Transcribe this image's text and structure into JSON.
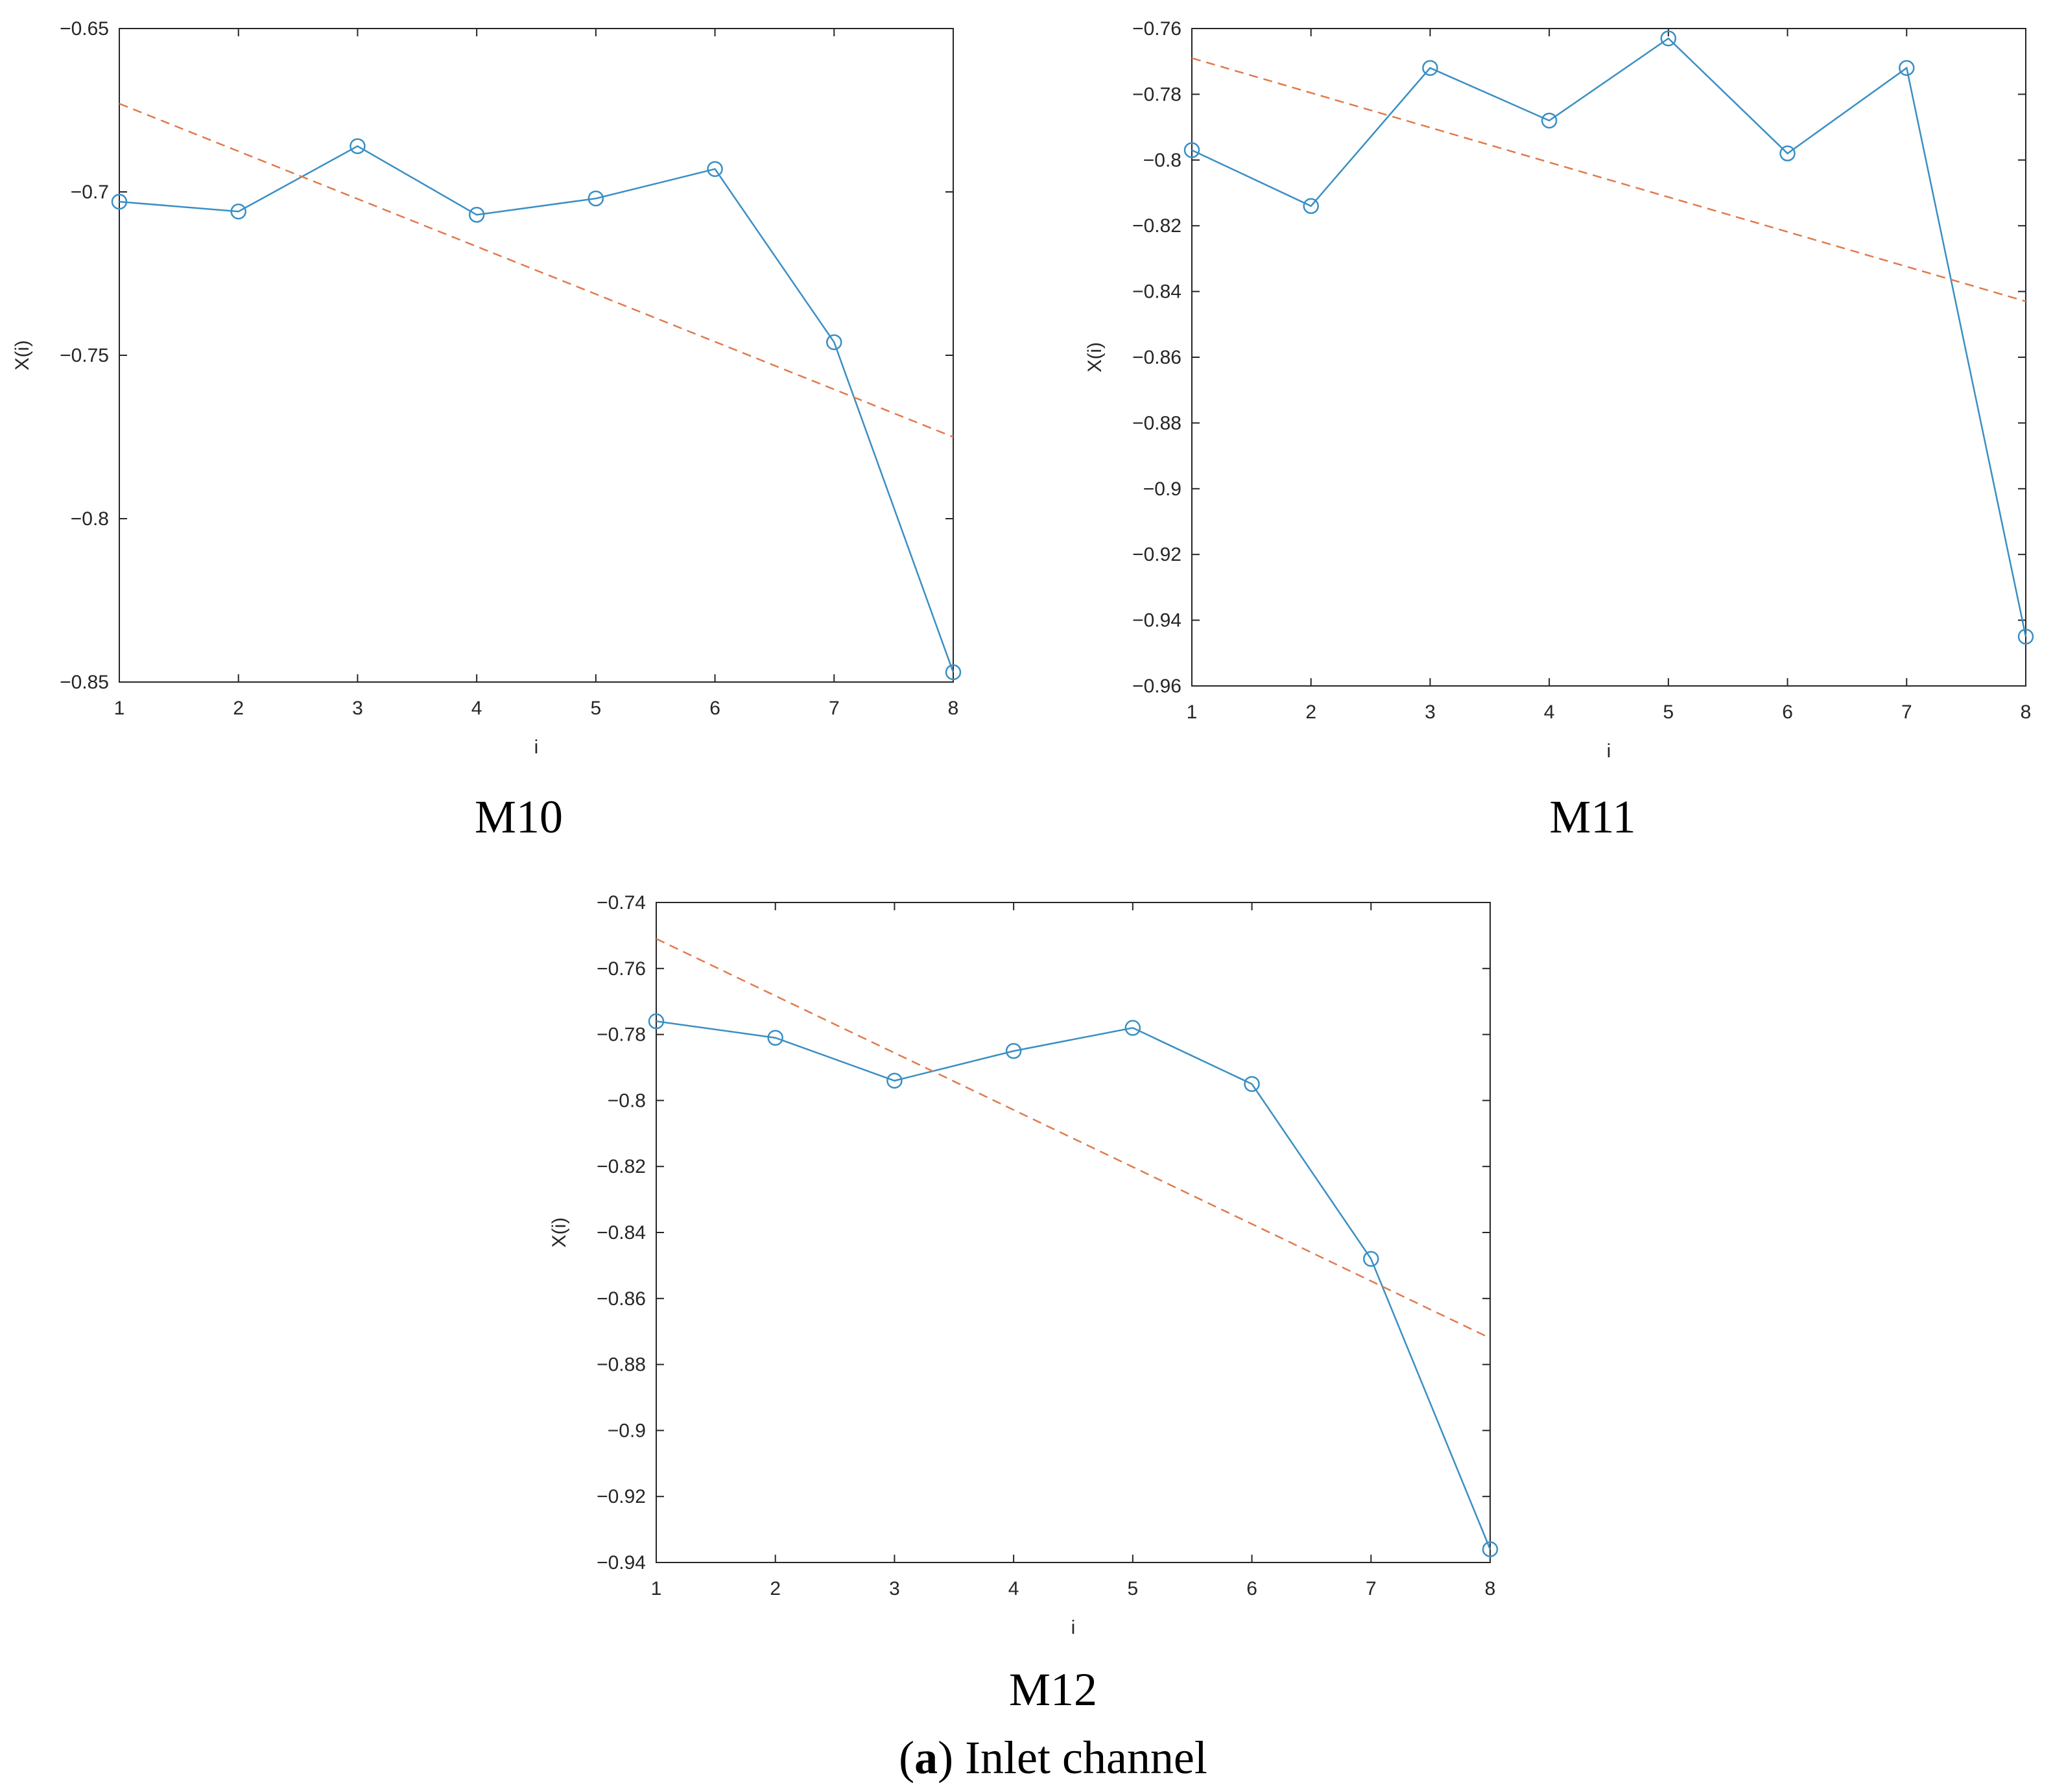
{
  "colors": {
    "series": "#3a8fc4",
    "trend": "#e07a4c",
    "axis": "#262626"
  },
  "caption": {
    "letter": "a",
    "text": "Inlet channel"
  },
  "chart_data": [
    {
      "type": "line",
      "label": "M10",
      "xlabel": "i",
      "ylabel": "X(i)",
      "xlim": [
        1,
        8
      ],
      "ylim": [
        -0.85,
        -0.65
      ],
      "xticks": [
        1,
        2,
        3,
        4,
        5,
        6,
        7,
        8
      ],
      "yticks": [
        -0.85,
        -0.8,
        -0.75,
        -0.7,
        -0.65
      ],
      "ytick_labels": [
        "−0.85",
        "−0.8",
        "−0.75",
        "−0.7",
        "−0.65"
      ],
      "series": [
        {
          "name": "X(i)",
          "style": "solid-circle",
          "x": [
            1,
            2,
            3,
            4,
            5,
            6,
            7,
            8
          ],
          "y": [
            -0.703,
            -0.706,
            -0.686,
            -0.707,
            -0.702,
            -0.693,
            -0.746,
            -0.847
          ]
        },
        {
          "name": "trend",
          "style": "dashed",
          "x": [
            1,
            8
          ],
          "y": [
            -0.673,
            -0.775
          ]
        }
      ]
    },
    {
      "type": "line",
      "label": "M11",
      "xlabel": "i",
      "ylabel": "X(i)",
      "xlim": [
        1,
        8
      ],
      "ylim": [
        -0.96,
        -0.76
      ],
      "xticks": [
        1,
        2,
        3,
        4,
        5,
        6,
        7,
        8
      ],
      "yticks": [
        -0.96,
        -0.94,
        -0.92,
        -0.9,
        -0.88,
        -0.86,
        -0.84,
        -0.82,
        -0.8,
        -0.78,
        -0.76
      ],
      "ytick_labels": [
        "−0.96",
        "−0.94",
        "−0.92",
        "−0.9",
        "−0.88",
        "−0.86",
        "−0.84",
        "−0.82",
        "−0.8",
        "−0.78",
        "−0.76"
      ],
      "series": [
        {
          "name": "X(i)",
          "style": "solid-circle",
          "x": [
            1,
            2,
            3,
            4,
            5,
            6,
            7,
            8
          ],
          "y": [
            -0.797,
            -0.814,
            -0.772,
            -0.788,
            -0.763,
            -0.798,
            -0.772,
            -0.945
          ]
        },
        {
          "name": "trend",
          "style": "dashed",
          "x": [
            1,
            8
          ],
          "y": [
            -0.769,
            -0.843
          ]
        }
      ]
    },
    {
      "type": "line",
      "label": "M12",
      "xlabel": "i",
      "ylabel": "X(i)",
      "xlim": [
        1,
        8
      ],
      "ylim": [
        -0.94,
        -0.74
      ],
      "xticks": [
        1,
        2,
        3,
        4,
        5,
        6,
        7,
        8
      ],
      "yticks": [
        -0.94,
        -0.92,
        -0.9,
        -0.88,
        -0.86,
        -0.84,
        -0.82,
        -0.8,
        -0.78,
        -0.76,
        -0.74
      ],
      "ytick_labels": [
        "−0.94",
        "−0.92",
        "−0.9",
        "−0.88",
        "−0.86",
        "−0.84",
        "−0.82",
        "−0.8",
        "−0.78",
        "−0.76",
        "−0.74"
      ],
      "series": [
        {
          "name": "X(i)",
          "style": "solid-circle",
          "x": [
            1,
            2,
            3,
            4,
            5,
            6,
            7,
            8
          ],
          "y": [
            -0.776,
            -0.781,
            -0.794,
            -0.785,
            -0.778,
            -0.795,
            -0.848,
            -0.936
          ]
        },
        {
          "name": "trend",
          "style": "dashed",
          "x": [
            1,
            8
          ],
          "y": [
            -0.751,
            -0.872
          ]
        }
      ]
    }
  ]
}
